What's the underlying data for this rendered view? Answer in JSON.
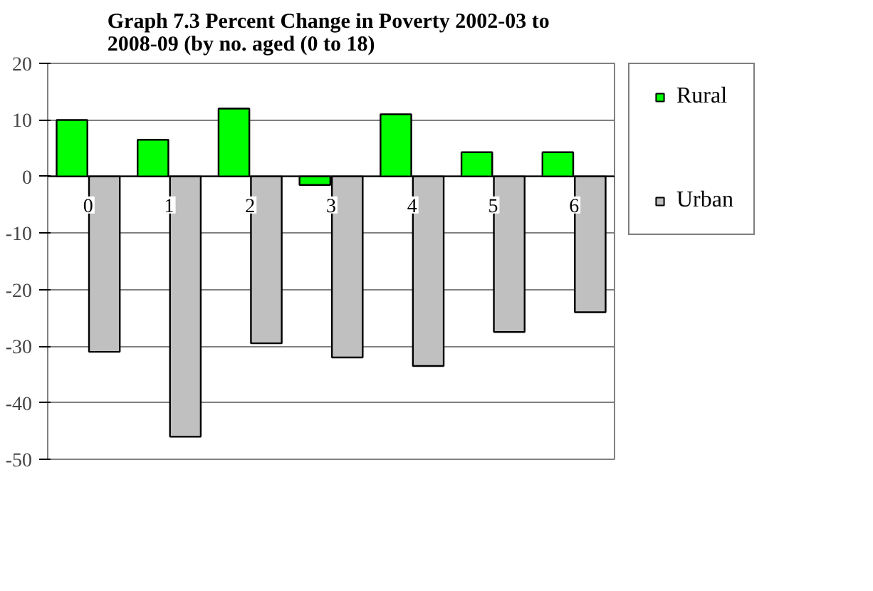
{
  "chart_data": {
    "type": "bar",
    "title": "Graph 7.3  Percent Change in Poverty 2002-03 to 2008-09 (by no. aged (0 to 18)",
    "categories": [
      "0",
      "1",
      "2",
      "3",
      "4",
      "5",
      "6"
    ],
    "series": [
      {
        "name": "Rural",
        "color": "#00ff00",
        "values": [
          10,
          6.5,
          12,
          -1.5,
          11,
          4.3,
          4.3
        ]
      },
      {
        "name": "Urban",
        "color": "#c0c0c0",
        "values": [
          -31,
          -46,
          -29.5,
          -32,
          -33.5,
          -27.5,
          -24
        ]
      }
    ],
    "ylim": [
      -50,
      20
    ],
    "yticks": [
      -50,
      -40,
      -30,
      -20,
      -10,
      0,
      10,
      20
    ],
    "grid": "y",
    "legend": "right"
  }
}
